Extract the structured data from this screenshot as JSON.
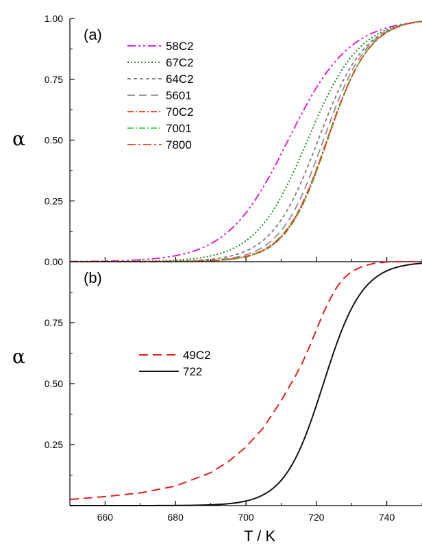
{
  "chart_data": [
    {
      "type": "line",
      "panel_label": "(a)",
      "ylabel": "α",
      "xlabel": "",
      "xlim": [
        650,
        750
      ],
      "ylim": [
        0,
        1
      ],
      "yticks": [
        "0.00",
        "0.25",
        "0.50",
        "0.75",
        "1.00"
      ],
      "legend_position": "upper-left",
      "series": [
        {
          "name": "58C2",
          "color": "#e01ee0",
          "dash": "12,4,3,4,3,4",
          "width": 2,
          "T50": 712,
          "k": 0.115
        },
        {
          "name": "67C2",
          "color": "#1a8c1a",
          "dash": "2,3",
          "width": 2,
          "T50": 717.5,
          "k": 0.135
        },
        {
          "name": "64C2",
          "color": "#7a7a7a",
          "dash": "5,4",
          "width": 1.8,
          "T50": 720.5,
          "k": 0.15
        },
        {
          "name": "5601",
          "color": "#8c8c8c",
          "dash": "11,6",
          "width": 1.8,
          "T50": 722,
          "k": 0.16
        },
        {
          "name": "70C2",
          "color": "#e0401a",
          "dash": "9,3,2,3",
          "width": 1.8,
          "T50": 723,
          "k": 0.165
        },
        {
          "name": "7001",
          "color": "#3ad03a",
          "dash": "9,3,2,3",
          "width": 1.8,
          "T50": 723.2,
          "k": 0.168
        },
        {
          "name": "7800",
          "color": "#e0401a",
          "dash": "12,4,3,4",
          "width": 1.8,
          "T50": 723.1,
          "k": 0.166
        }
      ]
    },
    {
      "type": "line",
      "panel_label": "(b)",
      "ylabel": "α",
      "xlabel": "T / K",
      "xlim": [
        650,
        750
      ],
      "ylim": [
        0,
        1
      ],
      "xticks": [
        "660",
        "680",
        "700",
        "720",
        "740"
      ],
      "yticks": [
        "0.25",
        "0.50",
        "0.75"
      ],
      "legend_position": "center-left",
      "series": [
        {
          "name": "49C2",
          "color": "#e0201a",
          "dash": "13,7",
          "width": 2,
          "x": [
            650,
            660,
            670,
            680,
            690,
            695,
            700,
            705,
            710,
            714,
            716,
            718,
            720,
            722,
            724,
            726,
            728,
            730,
            733,
            736,
            740,
            745,
            750
          ],
          "y": [
            0.025,
            0.037,
            0.052,
            0.08,
            0.135,
            0.18,
            0.24,
            0.32,
            0.43,
            0.53,
            0.585,
            0.65,
            0.72,
            0.79,
            0.85,
            0.9,
            0.935,
            0.96,
            0.98,
            0.992,
            0.999,
            1.0,
            1.0
          ]
        },
        {
          "name": "722",
          "color": "#111111",
          "dash": "",
          "width": 2,
          "T50": 722,
          "k": 0.18
        }
      ]
    }
  ]
}
